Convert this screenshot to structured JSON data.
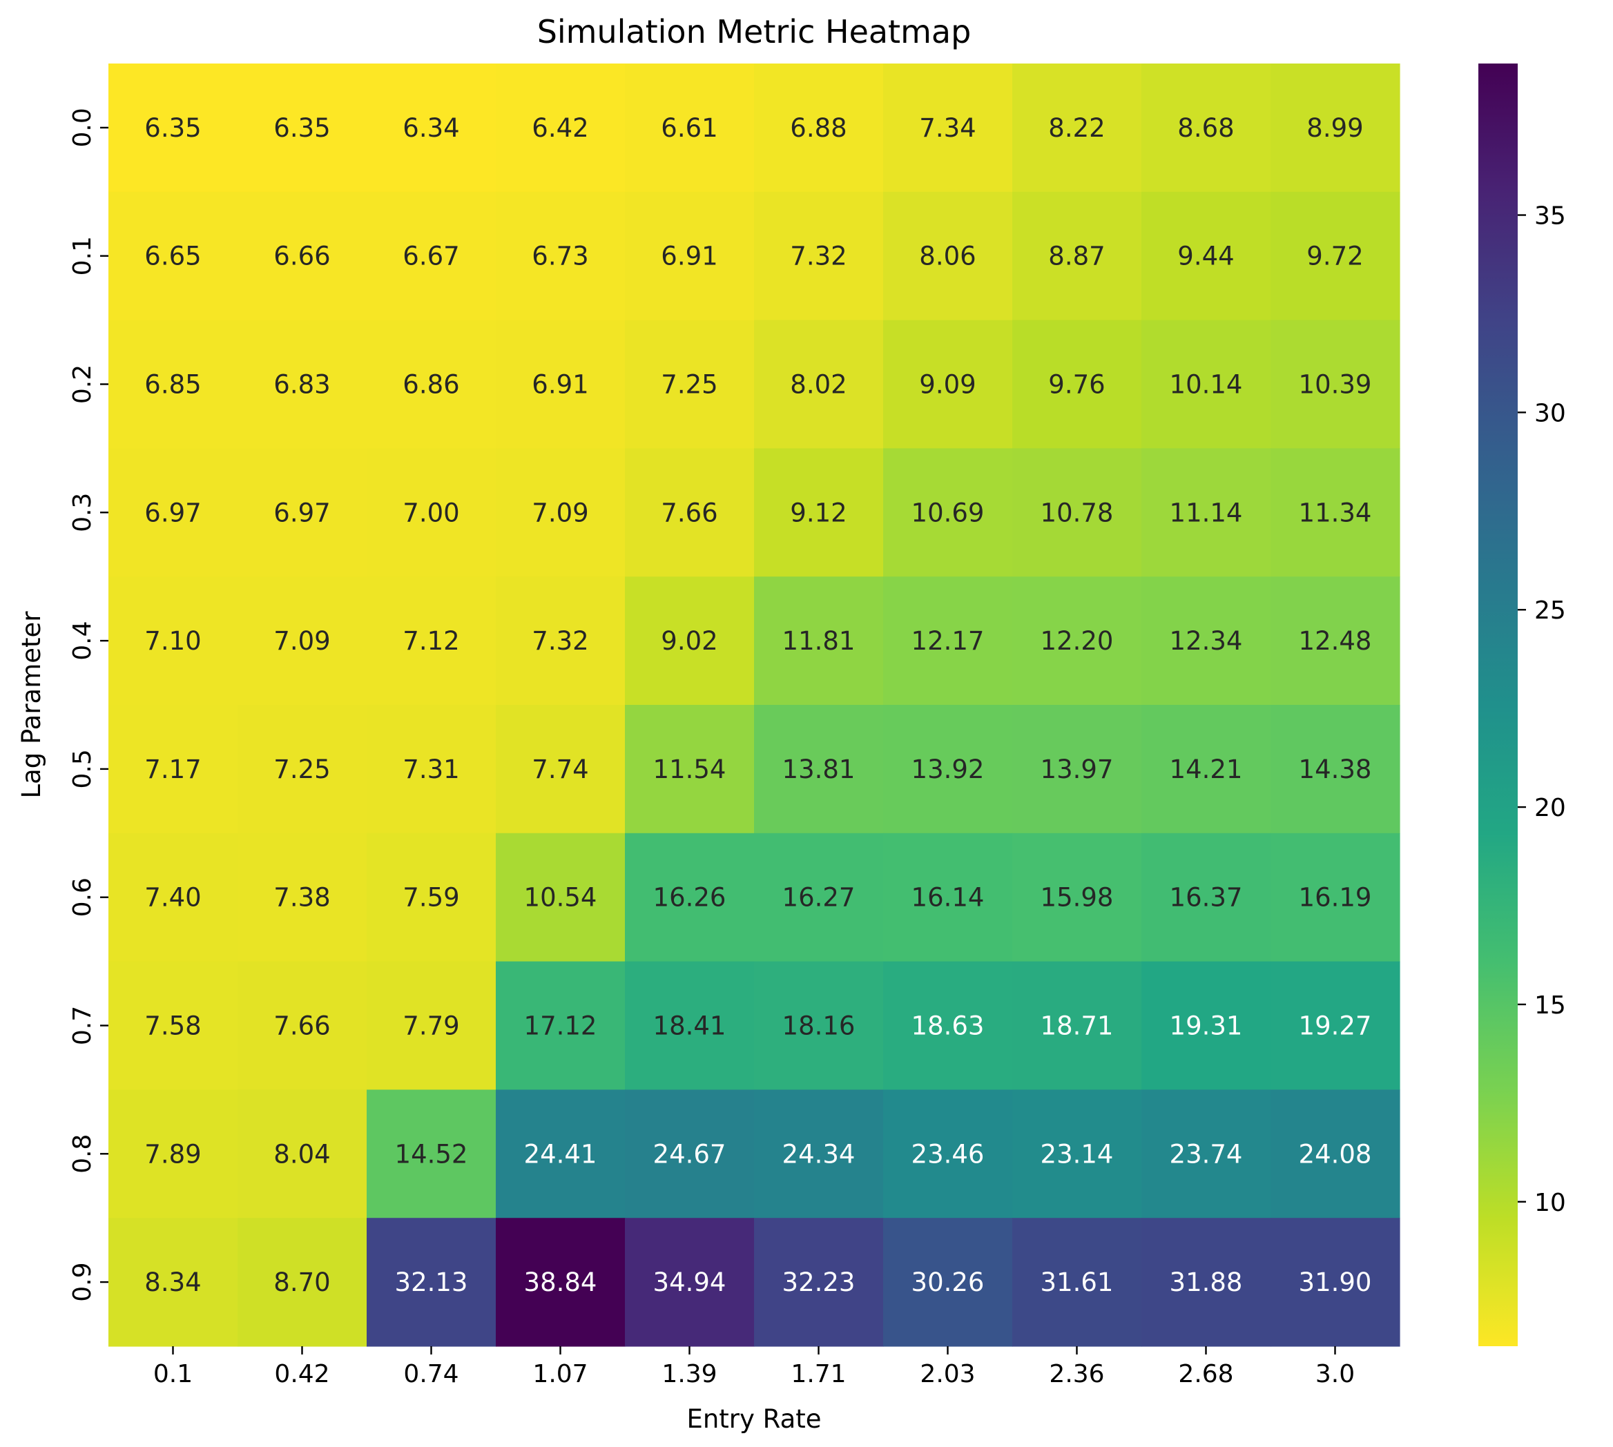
{
  "chart_data": {
    "type": "heatmap",
    "title": "Simulation Metric Heatmap",
    "xlabel": "Entry Rate",
    "ylabel": "Lag Parameter",
    "x_categories": [
      "0.1",
      "0.42",
      "0.74",
      "1.07",
      "1.39",
      "1.71",
      "2.03",
      "2.36",
      "2.68",
      "3.0"
    ],
    "y_categories": [
      "0.0",
      "0.1",
      "0.2",
      "0.3",
      "0.4",
      "0.5",
      "0.6",
      "0.7",
      "0.8",
      "0.9"
    ],
    "values": [
      [
        6.35,
        6.35,
        6.34,
        6.42,
        6.61,
        6.88,
        7.34,
        8.22,
        8.68,
        8.99
      ],
      [
        6.65,
        6.66,
        6.67,
        6.73,
        6.91,
        7.32,
        8.06,
        8.87,
        9.44,
        9.72
      ],
      [
        6.85,
        6.83,
        6.86,
        6.91,
        7.25,
        8.02,
        9.09,
        9.76,
        10.14,
        10.39
      ],
      [
        6.97,
        6.97,
        7.0,
        7.09,
        7.66,
        9.12,
        10.69,
        10.78,
        11.14,
        11.34
      ],
      [
        7.1,
        7.09,
        7.12,
        7.32,
        9.02,
        11.81,
        12.17,
        12.2,
        12.34,
        12.48
      ],
      [
        7.17,
        7.25,
        7.31,
        7.74,
        11.54,
        13.81,
        13.92,
        13.97,
        14.21,
        14.38
      ],
      [
        7.4,
        7.38,
        7.59,
        10.54,
        16.26,
        16.27,
        16.14,
        15.98,
        16.37,
        16.19
      ],
      [
        7.58,
        7.66,
        7.79,
        17.12,
        18.41,
        18.16,
        18.63,
        18.71,
        19.31,
        19.27
      ],
      [
        7.89,
        8.04,
        14.52,
        24.41,
        24.67,
        24.34,
        23.46,
        23.14,
        23.74,
        24.08
      ],
      [
        8.34,
        8.7,
        32.13,
        38.84,
        34.94,
        32.23,
        30.26,
        31.61,
        31.88,
        31.9
      ]
    ],
    "value_format": "2 decimals",
    "colormap": "viridis_r",
    "colorbar": {
      "range": [
        6.34,
        38.84
      ],
      "ticks": [
        10,
        15,
        20,
        25,
        30,
        35
      ]
    }
  }
}
